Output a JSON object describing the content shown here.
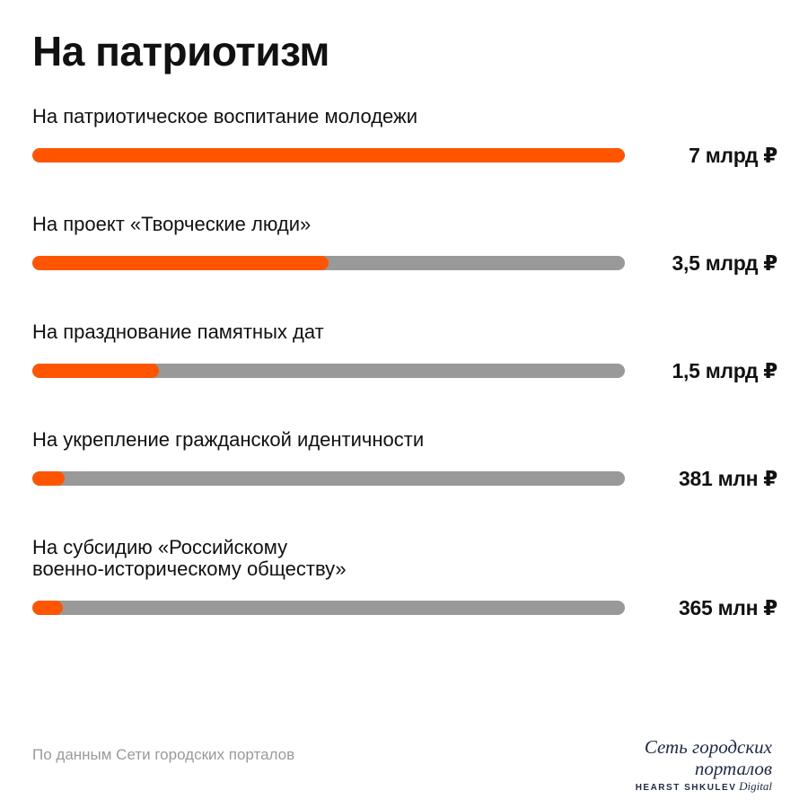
{
  "chart_data": {
    "type": "bar",
    "orientation": "horizontal",
    "title": "На патриотизм",
    "unit": "руб.",
    "categories": [
      "На патриотическое воспитание молодежи",
      "На проект «Творческие люди»",
      "На празднование памятных дат",
      "На укрепление гражданской идентичности",
      "На субсидию «Российскому военно-историческому обществу»"
    ],
    "category_lines": [
      [
        "На патриотическое воспитание молодежи"
      ],
      [
        "На проект «Творческие люди»"
      ],
      [
        "На празднование памятных дат"
      ],
      [
        "На укрепление гражданской идентичности"
      ],
      [
        "На субсидию «Российскому",
        "военно-историческому обществу»"
      ]
    ],
    "values": [
      7000000000,
      3500000000,
      1500000000,
      381000000,
      365000000
    ],
    "value_labels": [
      "7 млрд ₽",
      "3,5 млрд ₽",
      "1,5 млрд ₽",
      "381 млн ₽",
      "365 млн ₽"
    ],
    "xlim": [
      0,
      7000000000
    ],
    "grid": false,
    "colors": {
      "fill": "#ff5500",
      "track": "#999999"
    }
  },
  "footer": {
    "source": "По данным Сети городских порталов",
    "logo_main": "Сеть городских порталов",
    "logo_brand": "HEARST SHKULEV",
    "logo_digital": "Digital"
  }
}
